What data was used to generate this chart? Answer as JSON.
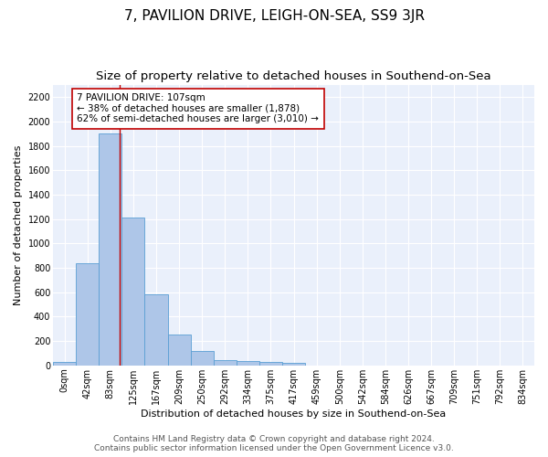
{
  "title": "7, PAVILION DRIVE, LEIGH-ON-SEA, SS9 3JR",
  "subtitle": "Size of property relative to detached houses in Southend-on-Sea",
  "xlabel": "Distribution of detached houses by size in Southend-on-Sea",
  "ylabel": "Number of detached properties",
  "bar_labels": [
    "0sqm",
    "42sqm",
    "83sqm",
    "125sqm",
    "167sqm",
    "209sqm",
    "250sqm",
    "292sqm",
    "334sqm",
    "375sqm",
    "417sqm",
    "459sqm",
    "500sqm",
    "542sqm",
    "584sqm",
    "626sqm",
    "667sqm",
    "709sqm",
    "751sqm",
    "792sqm",
    "834sqm"
  ],
  "bar_values": [
    30,
    840,
    1900,
    1210,
    580,
    255,
    115,
    45,
    38,
    28,
    20,
    0,
    0,
    0,
    0,
    0,
    0,
    0,
    0,
    0,
    0
  ],
  "bar_color": "#aec6e8",
  "bar_edge_color": "#5a9fd4",
  "ylim": [
    0,
    2300
  ],
  "yticks": [
    0,
    200,
    400,
    600,
    800,
    1000,
    1200,
    1400,
    1600,
    1800,
    2000,
    2200
  ],
  "vline_x": 2.42,
  "vline_color": "#c00000",
  "annotation_text": "7 PAVILION DRIVE: 107sqm\n← 38% of detached houses are smaller (1,878)\n62% of semi-detached houses are larger (3,010) →",
  "annotation_box_color": "#ffffff",
  "annotation_box_edge": "#c00000",
  "footer_line1": "Contains HM Land Registry data © Crown copyright and database right 2024.",
  "footer_line2": "Contains public sector information licensed under the Open Government Licence v3.0.",
  "bg_color": "#eaf0fb",
  "fig_bg_color": "#ffffff",
  "title_fontsize": 11,
  "subtitle_fontsize": 9.5,
  "axis_label_fontsize": 8,
  "tick_fontsize": 7,
  "annotation_fontsize": 7.5,
  "footer_fontsize": 6.5
}
